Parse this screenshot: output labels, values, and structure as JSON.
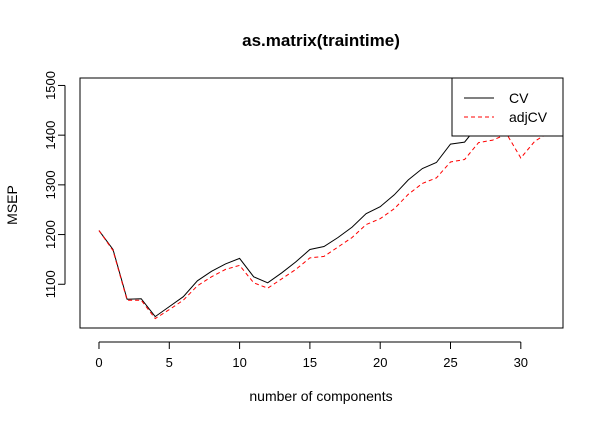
{
  "chart_data": {
    "type": "line",
    "title": "as.matrix(traintime)",
    "xlabel": "number of components",
    "ylabel": "MSEP",
    "xlim": [
      -1.35,
      33
    ],
    "ylim": [
      1012,
      1515
    ],
    "xticks": [
      0,
      5,
      10,
      15,
      20,
      25,
      30
    ],
    "yticks": [
      1100,
      1200,
      1300,
      1400,
      1500
    ],
    "grid": false,
    "legend_position": "top-right",
    "x": [
      0,
      1,
      2,
      3,
      4,
      5,
      6,
      7,
      8,
      9,
      10,
      11,
      12,
      13,
      14,
      15,
      16,
      17,
      18,
      19,
      20,
      21,
      22,
      23,
      24,
      25,
      26,
      27,
      28,
      29,
      30,
      31,
      32,
      33
    ],
    "series": [
      {
        "name": "CV",
        "color": "#000000",
        "dash": "solid",
        "values": [
          1208,
          1170,
          1070,
          1071,
          1035,
          1055,
          1075,
          1107,
          1126,
          1141,
          1152,
          1115,
          1103,
          1123,
          1145,
          1170,
          1176,
          1194,
          1215,
          1242,
          1256,
          1280,
          1310,
          1333,
          1345,
          1382,
          1386,
          1421,
          1430,
          1432,
          1428,
          1441,
          1458,
          1470
        ]
      },
      {
        "name": "adjCV",
        "color": "#ff0000",
        "dash": "dashed",
        "values": [
          1208,
          1168,
          1068,
          1068,
          1031,
          1049,
          1068,
          1097,
          1115,
          1130,
          1138,
          1103,
          1092,
          1111,
          1130,
          1153,
          1156,
          1175,
          1194,
          1220,
          1232,
          1252,
          1281,
          1303,
          1314,
          1346,
          1351,
          1385,
          1390,
          1402,
          1354,
          1388,
          1405,
          1420
        ]
      }
    ]
  }
}
